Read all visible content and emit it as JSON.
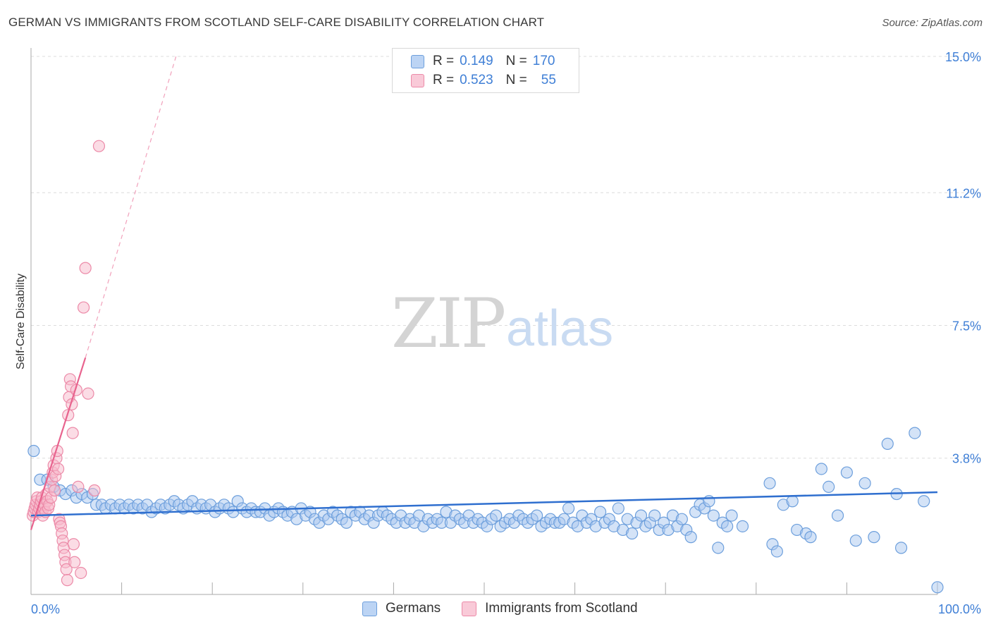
{
  "title": "GERMAN VS IMMIGRANTS FROM SCOTLAND SELF-CARE DISABILITY CORRELATION CHART",
  "source": "Source: ZipAtlas.com",
  "watermark": {
    "zip": "ZIP",
    "atlas": "atlas"
  },
  "legend": {
    "rows": [
      {
        "r_label": "R =",
        "r_value": "0.149",
        "n_label": "N =",
        "n_value": "170"
      },
      {
        "r_label": "R =",
        "r_value": "0.523",
        "n_label": "N =",
        "n_value": "55"
      }
    ]
  },
  "bottom_legend": {
    "germans": "Germans",
    "scotland": "Immigrants from Scotland"
  },
  "colors": {
    "germans_fill": "#a9c8f0",
    "germans_stroke": "#6d9fdc",
    "germans_line": "#2f6fcf",
    "scotland_fill": "#f7b9cc",
    "scotland_stroke": "#ec8aa8",
    "scotland_line": "#e8638e",
    "tick": "#3f7fd6",
    "grid": "#dcdcdc"
  },
  "chart_data": {
    "type": "scatter",
    "title": "GERMAN VS IMMIGRANTS FROM SCOTLAND SELF-CARE DISABILITY CORRELATION CHART",
    "xlabel": "",
    "ylabel": "Self-Care Disability",
    "xlim": [
      0,
      100
    ],
    "ylim": [
      0,
      15
    ],
    "x_tick_labels": [
      "0.0%",
      "100.0%"
    ],
    "y_ticks": [
      3.8,
      7.5,
      11.2,
      15.0
    ],
    "y_tick_labels": [
      "3.8%",
      "7.5%",
      "11.2%",
      "15.0%"
    ],
    "x_minor_ticks": [
      0,
      10,
      20,
      30,
      40,
      50,
      60,
      70,
      80,
      90,
      100
    ],
    "grid": "horizontal dashed",
    "legend_position": "top-center",
    "series": [
      {
        "name": "Germans",
        "r": 0.149,
        "n": 170,
        "trend": {
          "x": [
            0,
            100
          ],
          "y": [
            2.2,
            2.85
          ]
        },
        "points": [
          [
            0.3,
            4.0
          ],
          [
            1.0,
            3.2
          ],
          [
            1.8,
            3.2
          ],
          [
            2.5,
            3.0
          ],
          [
            3.2,
            2.9
          ],
          [
            3.8,
            2.8
          ],
          [
            4.5,
            2.9
          ],
          [
            5.0,
            2.7
          ],
          [
            5.6,
            2.8
          ],
          [
            6.2,
            2.7
          ],
          [
            6.8,
            2.8
          ],
          [
            7.2,
            2.5
          ],
          [
            7.8,
            2.5
          ],
          [
            8.2,
            2.4
          ],
          [
            8.8,
            2.5
          ],
          [
            9.3,
            2.4
          ],
          [
            9.8,
            2.5
          ],
          [
            10.3,
            2.4
          ],
          [
            10.8,
            2.5
          ],
          [
            11.3,
            2.4
          ],
          [
            11.8,
            2.5
          ],
          [
            12.3,
            2.4
          ],
          [
            12.8,
            2.5
          ],
          [
            13.3,
            2.3
          ],
          [
            13.8,
            2.4
          ],
          [
            14.3,
            2.5
          ],
          [
            14.8,
            2.4
          ],
          [
            15.3,
            2.5
          ],
          [
            15.8,
            2.6
          ],
          [
            16.3,
            2.5
          ],
          [
            16.8,
            2.4
          ],
          [
            17.3,
            2.5
          ],
          [
            17.8,
            2.6
          ],
          [
            18.3,
            2.4
          ],
          [
            18.8,
            2.5
          ],
          [
            19.3,
            2.4
          ],
          [
            19.8,
            2.5
          ],
          [
            20.3,
            2.3
          ],
          [
            20.8,
            2.4
          ],
          [
            21.3,
            2.5
          ],
          [
            21.8,
            2.4
          ],
          [
            22.3,
            2.3
          ],
          [
            22.8,
            2.6
          ],
          [
            23.3,
            2.4
          ],
          [
            23.8,
            2.3
          ],
          [
            24.3,
            2.4
          ],
          [
            24.8,
            2.3
          ],
          [
            25.3,
            2.3
          ],
          [
            25.8,
            2.4
          ],
          [
            26.3,
            2.2
          ],
          [
            26.8,
            2.3
          ],
          [
            27.3,
            2.4
          ],
          [
            27.8,
            2.3
          ],
          [
            28.3,
            2.2
          ],
          [
            28.8,
            2.3
          ],
          [
            29.3,
            2.1
          ],
          [
            29.8,
            2.4
          ],
          [
            30.3,
            2.2
          ],
          [
            30.8,
            2.3
          ],
          [
            31.3,
            2.1
          ],
          [
            31.8,
            2.0
          ],
          [
            32.3,
            2.2
          ],
          [
            32.8,
            2.1
          ],
          [
            33.3,
            2.3
          ],
          [
            33.8,
            2.2
          ],
          [
            34.3,
            2.1
          ],
          [
            34.8,
            2.0
          ],
          [
            35.3,
            2.3
          ],
          [
            35.8,
            2.2
          ],
          [
            36.3,
            2.3
          ],
          [
            36.8,
            2.1
          ],
          [
            37.3,
            2.2
          ],
          [
            37.8,
            2.0
          ],
          [
            38.3,
            2.2
          ],
          [
            38.8,
            2.3
          ],
          [
            39.3,
            2.2
          ],
          [
            39.8,
            2.1
          ],
          [
            40.3,
            2.0
          ],
          [
            40.8,
            2.2
          ],
          [
            41.3,
            2.0
          ],
          [
            41.8,
            2.1
          ],
          [
            42.3,
            2.0
          ],
          [
            42.8,
            2.2
          ],
          [
            43.3,
            1.9
          ],
          [
            43.8,
            2.1
          ],
          [
            44.3,
            2.0
          ],
          [
            44.8,
            2.1
          ],
          [
            45.3,
            2.0
          ],
          [
            45.8,
            2.3
          ],
          [
            46.3,
            2.0
          ],
          [
            46.8,
            2.2
          ],
          [
            47.3,
            2.1
          ],
          [
            47.8,
            2.0
          ],
          [
            48.3,
            2.2
          ],
          [
            48.8,
            2.0
          ],
          [
            49.3,
            2.1
          ],
          [
            49.8,
            2.0
          ],
          [
            50.3,
            1.9
          ],
          [
            50.8,
            2.1
          ],
          [
            51.3,
            2.2
          ],
          [
            51.8,
            1.9
          ],
          [
            52.3,
            2.0
          ],
          [
            52.8,
            2.1
          ],
          [
            53.3,
            2.0
          ],
          [
            53.8,
            2.2
          ],
          [
            54.3,
            2.1
          ],
          [
            54.8,
            2.0
          ],
          [
            55.3,
            2.1
          ],
          [
            55.8,
            2.2
          ],
          [
            56.3,
            1.9
          ],
          [
            56.8,
            2.0
          ],
          [
            57.3,
            2.1
          ],
          [
            57.8,
            2.0
          ],
          [
            58.3,
            2.0
          ],
          [
            58.8,
            2.1
          ],
          [
            59.3,
            2.4
          ],
          [
            59.8,
            2.0
          ],
          [
            60.3,
            1.9
          ],
          [
            60.8,
            2.2
          ],
          [
            61.3,
            2.0
          ],
          [
            61.8,
            2.1
          ],
          [
            62.3,
            1.9
          ],
          [
            62.8,
            2.3
          ],
          [
            63.3,
            2.0
          ],
          [
            63.8,
            2.1
          ],
          [
            64.3,
            1.9
          ],
          [
            64.8,
            2.4
          ],
          [
            65.3,
            1.8
          ],
          [
            65.8,
            2.1
          ],
          [
            66.3,
            1.7
          ],
          [
            66.8,
            2.0
          ],
          [
            67.3,
            2.2
          ],
          [
            67.8,
            1.9
          ],
          [
            68.3,
            2.0
          ],
          [
            68.8,
            2.2
          ],
          [
            69.3,
            1.8
          ],
          [
            69.8,
            2.0
          ],
          [
            70.3,
            1.8
          ],
          [
            70.8,
            2.2
          ],
          [
            71.3,
            1.9
          ],
          [
            71.8,
            2.1
          ],
          [
            72.3,
            1.8
          ],
          [
            72.8,
            1.6
          ],
          [
            73.3,
            2.3
          ],
          [
            73.8,
            2.5
          ],
          [
            74.3,
            2.4
          ],
          [
            74.8,
            2.6
          ],
          [
            75.3,
            2.2
          ],
          [
            75.8,
            1.3
          ],
          [
            76.3,
            2.0
          ],
          [
            76.8,
            1.9
          ],
          [
            77.3,
            2.2
          ],
          [
            78.5,
            1.9
          ],
          [
            81.5,
            3.1
          ],
          [
            81.8,
            1.4
          ],
          [
            82.3,
            1.2
          ],
          [
            83.0,
            2.5
          ],
          [
            84.0,
            2.6
          ],
          [
            84.5,
            1.8
          ],
          [
            85.5,
            1.7
          ],
          [
            86.0,
            1.6
          ],
          [
            87.2,
            3.5
          ],
          [
            88.0,
            3.0
          ],
          [
            89.0,
            2.2
          ],
          [
            90.0,
            3.4
          ],
          [
            91.0,
            1.5
          ],
          [
            92.0,
            3.1
          ],
          [
            93.0,
            1.6
          ],
          [
            94.5,
            4.2
          ],
          [
            95.5,
            2.8
          ],
          [
            96.0,
            1.3
          ],
          [
            97.5,
            4.5
          ],
          [
            98.5,
            2.6
          ],
          [
            100.0,
            0.2
          ]
        ]
      },
      {
        "name": "Immigrants from Scotland",
        "r": 0.523,
        "n": 55,
        "trend": {
          "x": [
            0,
            6
          ],
          "y": [
            1.8,
            6.6
          ]
        },
        "trend_extended": {
          "x": [
            6,
            16
          ],
          "y": [
            6.6,
            15.0
          ]
        },
        "points": [
          [
            0.2,
            2.2
          ],
          [
            0.3,
            2.3
          ],
          [
            0.4,
            2.4
          ],
          [
            0.5,
            2.5
          ],
          [
            0.6,
            2.6
          ],
          [
            0.7,
            2.7
          ],
          [
            0.8,
            2.3
          ],
          [
            0.9,
            2.4
          ],
          [
            1.0,
            2.5
          ],
          [
            1.1,
            2.6
          ],
          [
            1.2,
            2.7
          ],
          [
            1.3,
            2.2
          ],
          [
            1.4,
            2.4
          ],
          [
            1.5,
            2.5
          ],
          [
            1.6,
            2.3
          ],
          [
            1.7,
            2.8
          ],
          [
            1.8,
            2.6
          ],
          [
            1.9,
            2.4
          ],
          [
            2.0,
            2.5
          ],
          [
            2.1,
            3.0
          ],
          [
            2.2,
            2.7
          ],
          [
            2.3,
            3.2
          ],
          [
            2.4,
            3.4
          ],
          [
            2.5,
            3.6
          ],
          [
            2.6,
            2.9
          ],
          [
            2.7,
            3.3
          ],
          [
            2.8,
            3.8
          ],
          [
            2.9,
            4.0
          ],
          [
            3.0,
            3.5
          ],
          [
            3.1,
            2.1
          ],
          [
            3.2,
            2.0
          ],
          [
            3.3,
            1.9
          ],
          [
            3.4,
            1.7
          ],
          [
            3.5,
            1.5
          ],
          [
            3.6,
            1.3
          ],
          [
            3.7,
            1.1
          ],
          [
            3.8,
            0.9
          ],
          [
            3.9,
            0.7
          ],
          [
            4.0,
            0.4
          ],
          [
            4.1,
            5.0
          ],
          [
            4.2,
            5.5
          ],
          [
            4.3,
            6.0
          ],
          [
            4.4,
            5.8
          ],
          [
            4.5,
            5.3
          ],
          [
            4.6,
            4.5
          ],
          [
            4.7,
            1.4
          ],
          [
            4.8,
            0.9
          ],
          [
            5.0,
            5.7
          ],
          [
            5.2,
            3.0
          ],
          [
            5.5,
            0.6
          ],
          [
            5.8,
            8.0
          ],
          [
            6.0,
            9.1
          ],
          [
            6.3,
            5.6
          ],
          [
            7.0,
            2.9
          ],
          [
            7.5,
            12.5
          ]
        ]
      }
    ]
  }
}
